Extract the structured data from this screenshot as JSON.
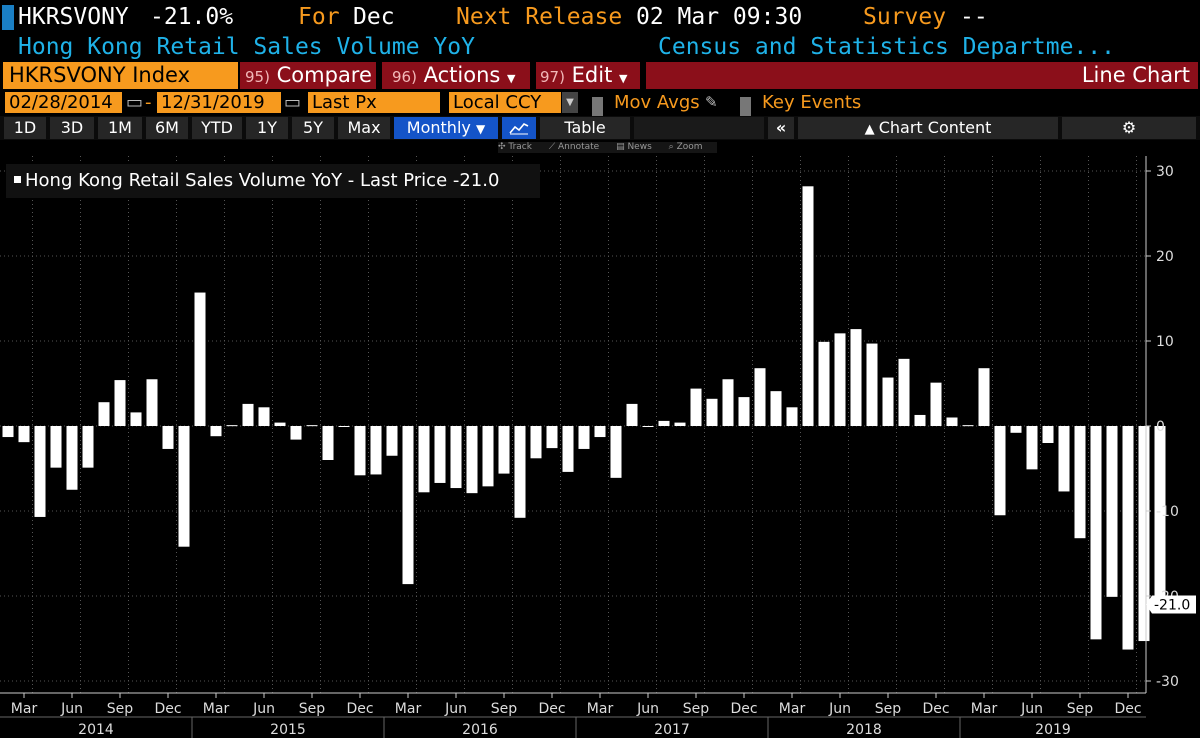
{
  "header": {
    "ticker": "HKRSVONY",
    "last_value": "-21.0%",
    "for_label": "For",
    "period": "Dec",
    "next_release_label": "Next Release",
    "next_release": "02 Mar 09:30",
    "survey_label": "Survey",
    "survey_value": "--",
    "series_title": "Hong Kong Retail Sales Volume YoY",
    "source": "Census and Statistics Departme..."
  },
  "toolbar": {
    "ticker_index": "HKRSVONY Index",
    "compare_num": "95)",
    "compare": "Compare",
    "actions_num": "96)",
    "actions": "Actions",
    "edit_num": "97)",
    "edit": "Edit",
    "chart_type": "Line Chart"
  },
  "range": {
    "start": "02/28/2014",
    "end": "12/31/2019",
    "field": "Last Px",
    "currency": "Local CCY",
    "mov_avgs": "Mov Avgs",
    "key_events": "Key Events"
  },
  "periods": {
    "d1": "1D",
    "d3": "3D",
    "m1": "1M",
    "m6": "6M",
    "ytd": "YTD",
    "y1": "1Y",
    "y5": "5Y",
    "max": "Max",
    "freq": "Monthly",
    "table": "Table",
    "chart_content": "Chart Content"
  },
  "tools": {
    "track": "Track",
    "annotate": "Annotate",
    "news": "News",
    "zoom": "Zoom"
  },
  "legend": {
    "text": "Hong Kong Retail Sales Volume YoY - Last Price -21.0"
  },
  "colors": {
    "accent_orange": "#f79a1e",
    "title_blue": "#1fb2e8",
    "menu_red": "#8b0f1a",
    "selected_blue": "#1454c8",
    "bars": "#ffffff"
  },
  "chart_data": {
    "type": "bar",
    "title": "Hong Kong Retail Sales Volume YoY",
    "series": [
      {
        "name": "Hong Kong Retail Sales Volume YoY - Last Price",
        "values": [
          -1.3,
          -1.9,
          -10.7,
          -4.9,
          -7.5,
          -4.9,
          2.8,
          5.4,
          1.6,
          5.5,
          -2.7,
          -14.2,
          15.7,
          -1.2,
          0.1,
          2.6,
          2.2,
          0.4,
          -1.6,
          0.1,
          -4.0,
          0.0,
          -5.8,
          -5.7,
          -3.5,
          -18.6,
          -7.8,
          -6.7,
          -7.3,
          -7.9,
          -7.1,
          -5.6,
          -10.8,
          -3.8,
          -2.6,
          -5.4,
          -2.7,
          -1.3,
          -6.1,
          2.6,
          -0.1,
          0.6,
          0.4,
          4.4,
          3.2,
          5.5,
          3.4,
          6.8,
          4.1,
          2.2,
          28.2,
          9.9,
          10.9,
          11.4,
          9.7,
          5.7,
          7.9,
          1.3,
          5.1,
          1.0,
          0.1,
          6.8,
          -10.5,
          -0.8,
          -5.1,
          -2.0,
          -7.7,
          -13.2,
          -25.1,
          -20.1,
          -26.3,
          -25.3,
          -21.0
        ]
      }
    ],
    "x_start": "Feb 2014",
    "x_end": "Feb 2020",
    "x_tick_labels": [
      "Mar",
      "Jun",
      "Sep",
      "Dec",
      "Mar",
      "Jun",
      "Sep",
      "Dec",
      "Mar",
      "Jun",
      "Sep",
      "Dec",
      "Mar",
      "Jun",
      "Sep",
      "Dec",
      "Mar",
      "Jun",
      "Sep",
      "Dec",
      "Mar",
      "Jun",
      "Sep",
      "Dec"
    ],
    "x_year_labels": [
      "2014",
      "2015",
      "2016",
      "2017",
      "2018",
      "2019"
    ],
    "y_ticks": [
      30,
      20,
      10,
      0,
      -10,
      -20,
      -30
    ],
    "ylim": [
      -31.5,
      32.5
    ],
    "last_value_label": "-21.0",
    "grid": true,
    "y_axis_side": "right"
  }
}
